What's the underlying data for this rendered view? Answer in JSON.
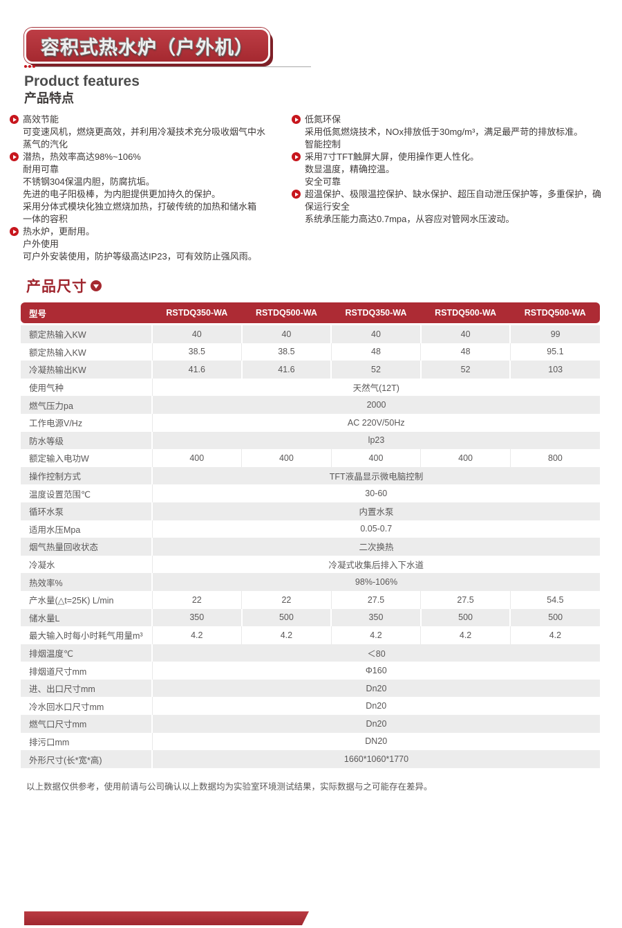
{
  "colors": {
    "brand_red": "#a52930",
    "table_header_red": "#ad2b34",
    "row_gray": "#ececec",
    "bullet_red": "#c7161d",
    "text_dark": "#3e3a39",
    "text_gray": "#595757"
  },
  "banner": {
    "title": "容积式热水炉（户外机）"
  },
  "product_features": {
    "title_en": "Product features",
    "title_zh": "产品特点"
  },
  "features": {
    "left": [
      {
        "lines": [
          "高效节能",
          "可变速风机，燃烧更高效，并利用冷凝技术充分吸收烟气中水",
          "蒸气的汽化"
        ]
      },
      {
        "lines": [
          "潜热，热效率高达98%~106%",
          "耐用可靠",
          "不锈钢304保温内胆，防腐抗垢。",
          "先进的电子阳极棒，为内胆提供更加持久的保护。",
          "采用分体式模块化独立燃烧加热，打破传统的加热和储水箱",
          "一体的容积"
        ]
      },
      {
        "lines": [
          "热水炉，更耐用。",
          "户外使用",
          "可户外安装使用，防护等级高达IP23，可有效防止强风雨。"
        ]
      }
    ],
    "right": [
      {
        "lines": [
          "低氮环保",
          "采用低氮燃烧技术，NOx排放低于30mg/m³，满足最严苛的排放标准。",
          "智能控制"
        ]
      },
      {
        "lines": [
          "采用7寸TFT触屏大屏，使用操作更人性化。",
          "数显温度，精确控温。",
          "安全可靠"
        ]
      },
      {
        "lines": [
          "超温保护、极限温控保护、缺水保护、超压自动泄压保护等，多重保护，确",
          "保运行安全",
          "系统承压能力高达0.7mpa，从容应对管网水压波动。"
        ]
      }
    ]
  },
  "dimensions_section": {
    "title": "产品尺寸"
  },
  "spec_table": {
    "header": [
      "型号",
      "RSTDQ350-WA",
      "RSTDQ500-WA",
      "RSTDQ350-WA",
      "RSTDQ500-WA",
      "RSTDQ500-WA"
    ],
    "rows": [
      {
        "label": "额定热输入KW",
        "values": [
          "40",
          "40",
          "40",
          "40",
          "99"
        ]
      },
      {
        "label": "额定热输入KW",
        "values": [
          "38.5",
          "38.5",
          "48",
          "48",
          "95.1"
        ]
      },
      {
        "label": "冷凝热输出KW",
        "values": [
          "41.6",
          "41.6",
          "52",
          "52",
          "103"
        ]
      },
      {
        "label": "使用气种",
        "span": "天然气(12T)"
      },
      {
        "label": "燃气压力pa",
        "span": "2000"
      },
      {
        "label": "工作电源V/Hz",
        "span": "AC 220V/50Hz"
      },
      {
        "label": "防水等级",
        "span": "lp23"
      },
      {
        "label": "额定输入电功W",
        "values": [
          "400",
          "400",
          "400",
          "400",
          "800"
        ]
      },
      {
        "label": "操作控制方式",
        "span": "TFT液晶显示微电脑控制"
      },
      {
        "label": "温度设置范围℃",
        "span": "30-60"
      },
      {
        "label": "循环水泵",
        "span": "内置水泵"
      },
      {
        "label": "适用水压Mpa",
        "span": "0.05-0.7"
      },
      {
        "label": "烟气热量回收状态",
        "span": "二次换热"
      },
      {
        "label": "冷凝水",
        "span": "冷凝式收集后排入下水道"
      },
      {
        "label": "热效率%",
        "span": "98%-106%"
      },
      {
        "label": "产水量(△t=25K) L/min",
        "values": [
          "22",
          "22",
          "27.5",
          "27.5",
          "54.5"
        ]
      },
      {
        "label": "储水量L",
        "values": [
          "350",
          "500",
          "350",
          "500",
          "500"
        ]
      },
      {
        "label": "最大输入时每小时耗气用量m³",
        "values": [
          "4.2",
          "4.2",
          "4.2",
          "4.2",
          "4.2"
        ]
      },
      {
        "label": "排烟温度℃",
        "span": "＜80"
      },
      {
        "label": "排烟道尺寸mm",
        "span": "Φ160"
      },
      {
        "label": "进、出口尺寸mm",
        "span": "Dn20"
      },
      {
        "label": "冷水回水口尺寸mm",
        "span": "Dn20"
      },
      {
        "label": "燃气口尺寸mm",
        "span": "Dn20"
      },
      {
        "label": "排污口mm",
        "span": "DN20"
      },
      {
        "label": "外形尺寸(长*宽*高)",
        "span": "1660*1060*1770"
      }
    ]
  },
  "footnote": "以上数据仅供参考，使用前请与公司确认以上数据均为实验室环境测试结果，实际数据与之可能存在差异。"
}
